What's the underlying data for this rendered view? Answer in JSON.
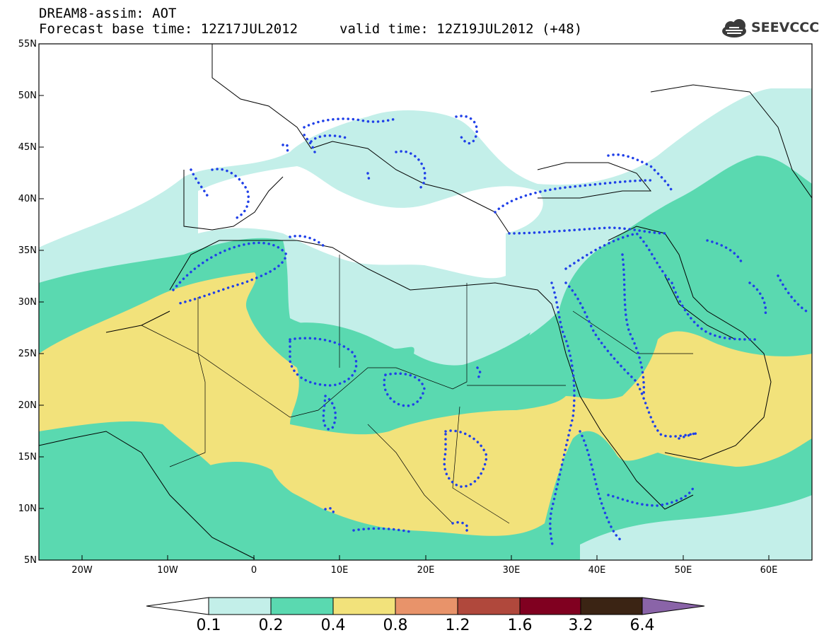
{
  "header": {
    "title_line1": "DREAM8-assim: AOT",
    "title_line2": "Forecast base time: 12Z17JUL2012",
    "valid_time": "valid time: 12Z19JUL2012 (+48)",
    "logo_text": "SEEVCCC"
  },
  "map": {
    "lat_labels": [
      "55N",
      "50N",
      "45N",
      "40N",
      "35N",
      "30N",
      "25N",
      "20N",
      "15N",
      "10N",
      "5N"
    ],
    "lon_labels": [
      "20W",
      "10W",
      "0",
      "10E",
      "20E",
      "30E",
      "40E",
      "50E",
      "60E"
    ],
    "colors": {
      "land_bg": "#ffffff",
      "aot_0_1": "#c3efe9",
      "aot_0_2": "#5ad9b0",
      "aot_0_4": "#f2e27b",
      "dots": "#2040e8"
    }
  },
  "colorbar": {
    "levels": [
      "0.1",
      "0.2",
      "0.4",
      "0.8",
      "1.2",
      "1.6",
      "3.2",
      "6.4"
    ],
    "colors": [
      "#ffffff",
      "#c3efe9",
      "#5ad9b0",
      "#f2e27b",
      "#e8936a",
      "#b0483c",
      "#800020",
      "#3b2414",
      "#8a64a8"
    ]
  }
}
